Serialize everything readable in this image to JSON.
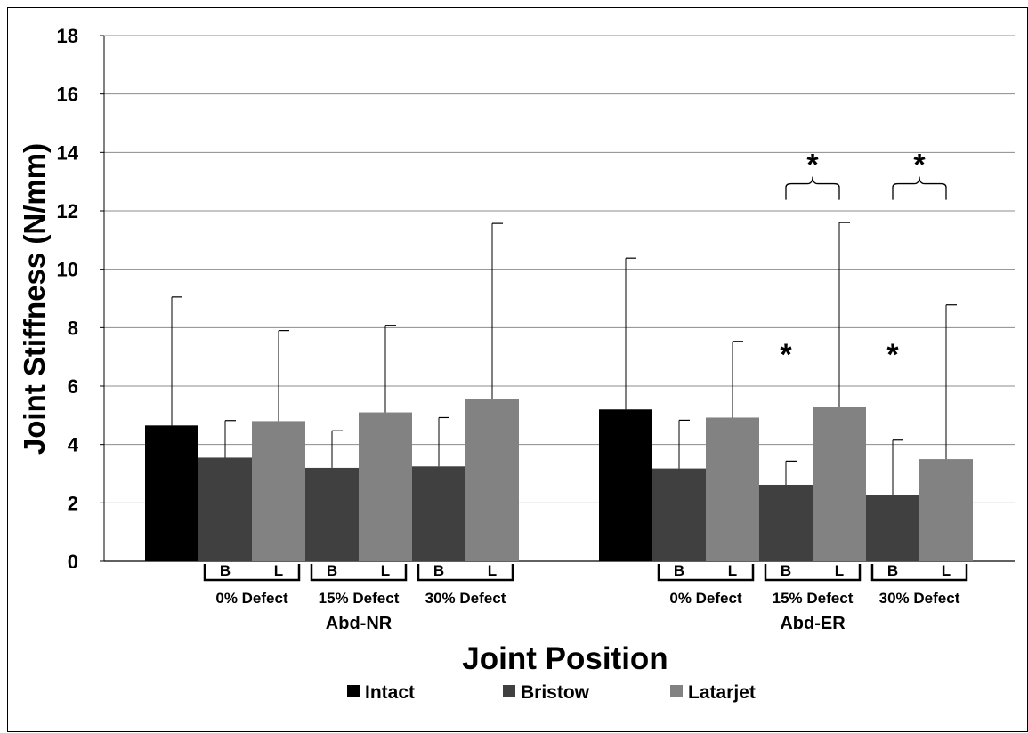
{
  "chart_data": {
    "type": "bar",
    "xlabel": "Joint Position",
    "ylabel": "Joint Stiffness (N/mm)",
    "ylim": [
      0,
      18
    ],
    "yticks": [
      "0",
      "2",
      "4",
      "6",
      "8",
      "10",
      "12",
      "14",
      "16",
      "18"
    ],
    "grid": true,
    "legend_position": "bottom",
    "series_names": [
      "Intact",
      "Bristow",
      "Latarjet"
    ],
    "colors": {
      "Intact": "#000000",
      "Bristow": "#404040",
      "Latarjet": "#828282"
    },
    "groups": [
      {
        "label": "Abd-NR",
        "intact": {
          "value": 4.65,
          "error": 9.05
        },
        "defects": [
          {
            "label": "0% Defect",
            "bristow": {
              "value": 3.55,
              "error": 4.82
            },
            "latarjet": {
              "value": 4.8,
              "error": 7.9
            }
          },
          {
            "label": "15% Defect",
            "bristow": {
              "value": 3.2,
              "error": 4.47
            },
            "latarjet": {
              "value": 5.1,
              "error": 8.08
            }
          },
          {
            "label": "30% Defect",
            "bristow": {
              "value": 3.25,
              "error": 4.92
            },
            "latarjet": {
              "value": 5.57,
              "error": 11.57
            }
          }
        ]
      },
      {
        "label": "Abd-ER",
        "intact": {
          "value": 5.2,
          "error": 10.38
        },
        "defects": [
          {
            "label": "0% Defect",
            "bristow": {
              "value": 3.18,
              "error": 4.83
            },
            "latarjet": {
              "value": 4.92,
              "error": 7.53
            }
          },
          {
            "label": "15% Defect",
            "bristow": {
              "value": 2.62,
              "error": 3.43
            },
            "latarjet": {
              "value": 5.28,
              "error": 11.6
            }
          },
          {
            "label": "30% Defect",
            "bristow": {
              "value": 2.28,
              "error": 4.15
            },
            "latarjet": {
              "value": 3.5,
              "error": 8.78
            }
          }
        ]
      }
    ],
    "bristow_abbrev": "B",
    "latarjet_abbrev": "L",
    "annotations": [
      {
        "text": "*",
        "group": 1,
        "defect": 1,
        "kind": "bracket",
        "y": 12.5
      },
      {
        "text": "*",
        "group": 1,
        "defect": 2,
        "kind": "bracket",
        "y": 12.5
      },
      {
        "text": "*",
        "group": 1,
        "defect": 1,
        "kind": "bristow",
        "y": 7.4
      },
      {
        "text": "*",
        "group": 1,
        "defect": 2,
        "kind": "bristow",
        "y": 7.4
      }
    ]
  }
}
